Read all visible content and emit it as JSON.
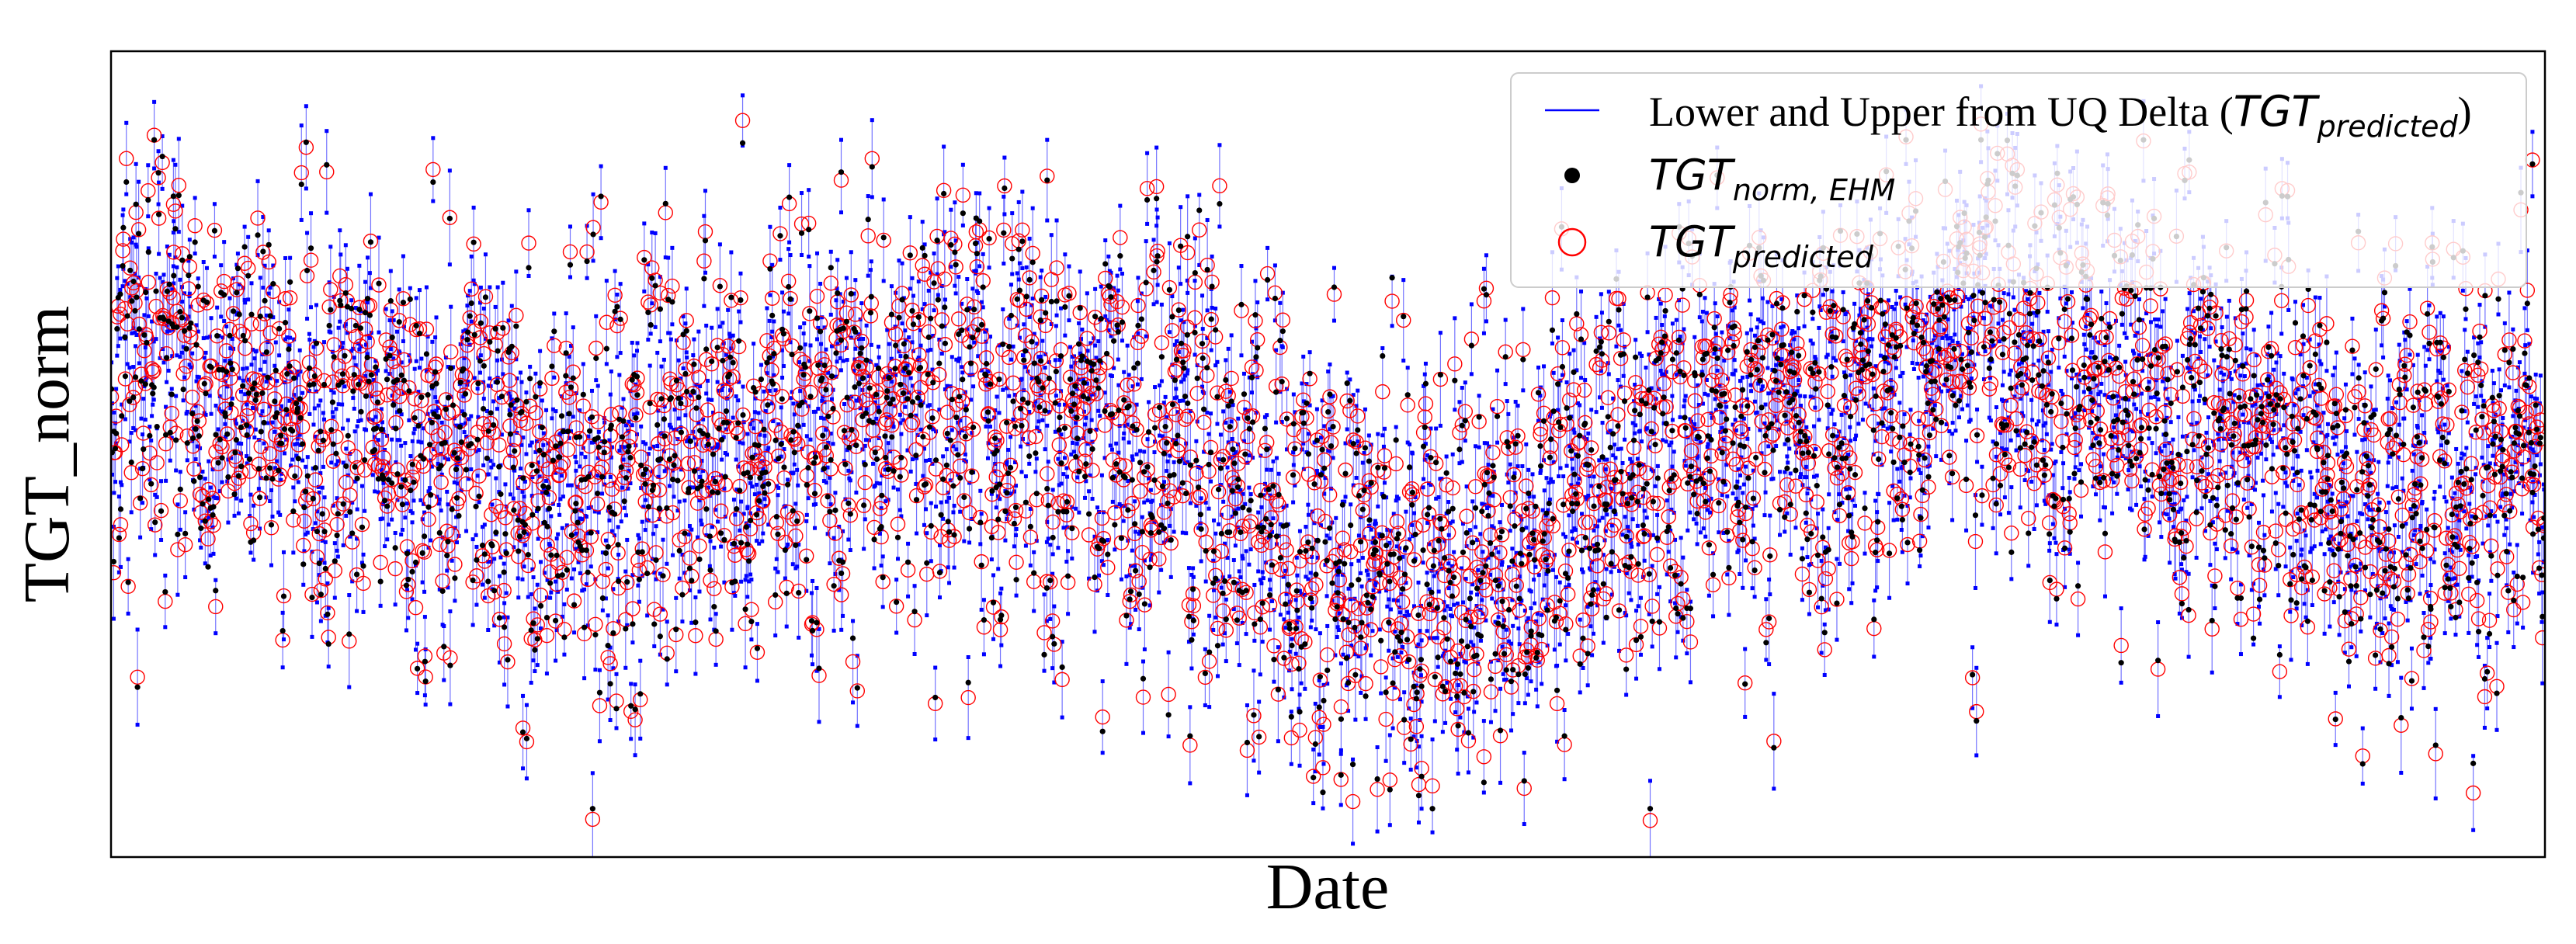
{
  "chart_data": {
    "type": "scatter",
    "title": "",
    "xlabel": "Date",
    "ylabel": "TGT_norm",
    "xticks_visible": false,
    "yticks_visible": false,
    "x_range": [
      0,
      780
    ],
    "ylim": [
      -1.0,
      1.0
    ],
    "legend": {
      "position": "top-right",
      "entries": [
        {
          "series": "bounds",
          "text": "Lower and Upper from UQ Delta (",
          "math_base": "TGT",
          "math_sub": "predicted",
          "text_after": ")"
        },
        {
          "series": "actual",
          "text": "",
          "math_base": "TGT",
          "math_sub": "norm, EHM",
          "text_after": ""
        },
        {
          "series": "predicted",
          "text": "",
          "math_base": "TGT",
          "math_sub": "predicted",
          "text_after": ""
        }
      ]
    },
    "series": [
      {
        "name": "Lower and Upper from UQ Delta (TGT_predicted)",
        "key": "bounds",
        "marker": "interval",
        "color": "#0000ff"
      },
      {
        "name": "TGT_norm, EHM",
        "key": "actual",
        "marker": "filled-dot",
        "color": "#000000"
      },
      {
        "name": "TGT_predicted",
        "key": "predicted",
        "marker": "open-circle",
        "color": "#ff0000"
      }
    ],
    "trend_anchors": {
      "x": [
        0,
        80,
        160,
        260,
        340,
        400,
        440,
        470,
        520,
        600,
        640,
        680,
        730,
        780
      ],
      "y": [
        0.25,
        0.05,
        -0.05,
        0.15,
        0.0,
        -0.25,
        -0.3,
        -0.15,
        0.05,
        0.25,
        0.2,
        0.05,
        -0.15,
        0.0
      ]
    },
    "spread": 0.3,
    "interval_halfwidth": [
      0.06,
      0.12
    ],
    "samples": [
      {
        "x": 8,
        "actual": 0.62,
        "predicted": 0.6,
        "lower": 0.52,
        "upper": 0.72
      },
      {
        "x": 20,
        "actual": 0.64,
        "predicted": 0.62,
        "lower": 0.55,
        "upper": 0.73
      },
      {
        "x": 128,
        "actual": 0.05,
        "predicted": -0.02,
        "lower": -0.1,
        "upper": 0.12
      },
      {
        "x": 132,
        "actual": -0.69,
        "predicted": -0.68,
        "lower": -0.78,
        "upper": -0.6
      },
      {
        "x": 160,
        "actual": -0.57,
        "predicted": -0.52,
        "lower": -0.66,
        "upper": -0.48
      },
      {
        "x": 176,
        "actual": 0.36,
        "predicted": 0.4,
        "lower": 0.28,
        "upper": 0.44
      },
      {
        "x": 234,
        "actual": 0.7,
        "predicted": 0.68,
        "lower": 0.6,
        "upper": 0.78
      },
      {
        "x": 300,
        "actual": 0.68,
        "predicted": 0.69,
        "lower": 0.58,
        "upper": 0.78
      },
      {
        "x": 345,
        "actual": 0.54,
        "predicted": 0.5,
        "lower": 0.4,
        "upper": 0.64
      },
      {
        "x": 420,
        "actual": -0.8,
        "predicted": -0.78,
        "lower": -0.88,
        "upper": -0.7
      },
      {
        "x": 440,
        "actual": 0.41,
        "predicted": 0.38,
        "lower": 0.3,
        "upper": 0.46
      },
      {
        "x": 666,
        "actual": 0.73,
        "predicted": 0.7,
        "lower": 0.65,
        "upper": 0.8
      },
      {
        "x": 730,
        "actual": -0.52,
        "predicted": -0.5,
        "lower": -0.6,
        "upper": -0.42
      },
      {
        "x": 776,
        "actual": 0.72,
        "predicted": 0.73,
        "lower": 0.64,
        "upper": 0.8
      }
    ]
  }
}
